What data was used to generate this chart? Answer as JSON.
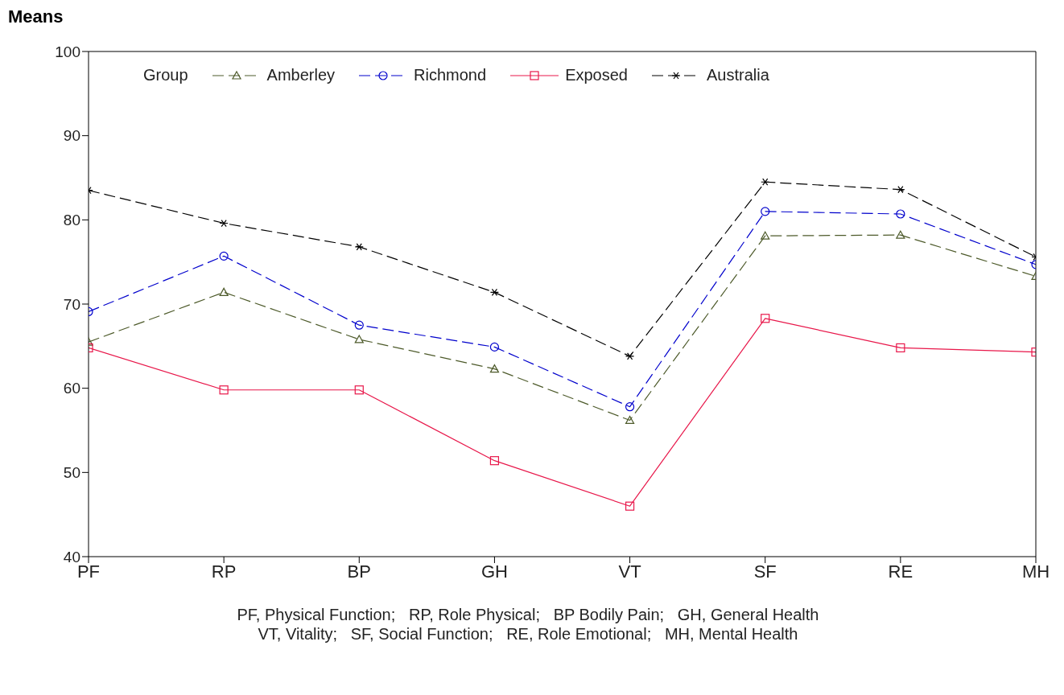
{
  "chart_data": {
    "type": "line",
    "ylabel": "Means",
    "legend_title": "Group",
    "legend": "top",
    "categories": [
      "PF",
      "RP",
      "BP",
      "GH",
      "VT",
      "SF",
      "RE",
      "MH"
    ],
    "ylim": [
      40,
      100
    ],
    "yticks": [
      40,
      50,
      60,
      70,
      80,
      90,
      100
    ],
    "grid": false,
    "series": [
      {
        "name": "Amberley",
        "color": "#4d5a2a",
        "marker": "triangle",
        "line_style": "dashed",
        "values": [
          65.5,
          71.4,
          65.8,
          62.3,
          56.2,
          78.1,
          78.2,
          73.3
        ]
      },
      {
        "name": "Richmond",
        "color": "#0000cc",
        "marker": "circle",
        "line_style": "dashed",
        "values": [
          69.1,
          75.7,
          67.5,
          64.9,
          57.8,
          81.0,
          80.7,
          74.7
        ]
      },
      {
        "name": "Exposed",
        "color": "#e8174a",
        "marker": "square",
        "line_style": "solid",
        "values": [
          64.8,
          59.8,
          59.8,
          51.4,
          46.0,
          68.3,
          64.8,
          64.3
        ]
      },
      {
        "name": "Australia",
        "color": "#000000",
        "marker": "cross",
        "line_style": "dashed",
        "values": [
          83.5,
          79.6,
          76.8,
          71.4,
          63.8,
          84.5,
          83.6,
          75.6
        ]
      }
    ],
    "annotations": [
      "PF, Physical Function;   RP, Role Physical;   BP Bodily Pain;   GH, General Health",
      "VT, Vitality;   SF, Social Function;   RE, Role Emotional;   MH, Mental Health"
    ]
  }
}
